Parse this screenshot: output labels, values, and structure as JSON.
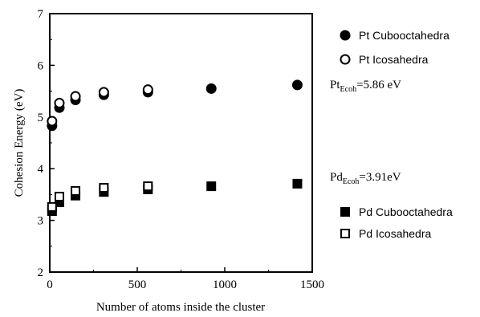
{
  "chart_data": {
    "type": "scatter",
    "xlabel": "Number of atoms inside the cluster",
    "ylabel": "Cohesion Energy (eV)",
    "xlim": [
      0,
      1500
    ],
    "ylim": [
      2,
      7
    ],
    "x_ticks": [
      "0",
      "500",
      "1000",
      "1500"
    ],
    "y_ticks": [
      "2",
      "3",
      "4",
      "5",
      "6",
      "7"
    ],
    "grid": false,
    "legend_placement": "right",
    "series": [
      {
        "name": "Pt Cubooctahedra",
        "marker": "circle-filled",
        "x": [
          13,
          55,
          147,
          309,
          561,
          923,
          1415
        ],
        "y": [
          4.83,
          5.18,
          5.33,
          5.43,
          5.48,
          5.55,
          5.62
        ]
      },
      {
        "name": "Pt Icosahedra",
        "marker": "circle-open",
        "x": [
          13,
          55,
          147,
          309,
          561
        ],
        "y": [
          4.92,
          5.27,
          5.4,
          5.48,
          5.53
        ]
      },
      {
        "name": "Pd Cubooctahedra",
        "marker": "square-filled",
        "x": [
          13,
          55,
          147,
          309,
          561,
          923,
          1415
        ],
        "y": [
          3.18,
          3.35,
          3.48,
          3.55,
          3.6,
          3.66,
          3.71
        ]
      },
      {
        "name": "Pd Icosahedra",
        "marker": "square-open",
        "x": [
          13,
          55,
          147,
          309,
          561
        ],
        "y": [
          3.26,
          3.46,
          3.57,
          3.63,
          3.66
        ]
      }
    ],
    "annotations": [
      {
        "main": "Pt",
        "sub": "Ecoh",
        "rest": "=5.86 eV"
      },
      {
        "main": "Pd",
        "sub": "Ecoh",
        "rest": "=3.91eV"
      }
    ]
  }
}
